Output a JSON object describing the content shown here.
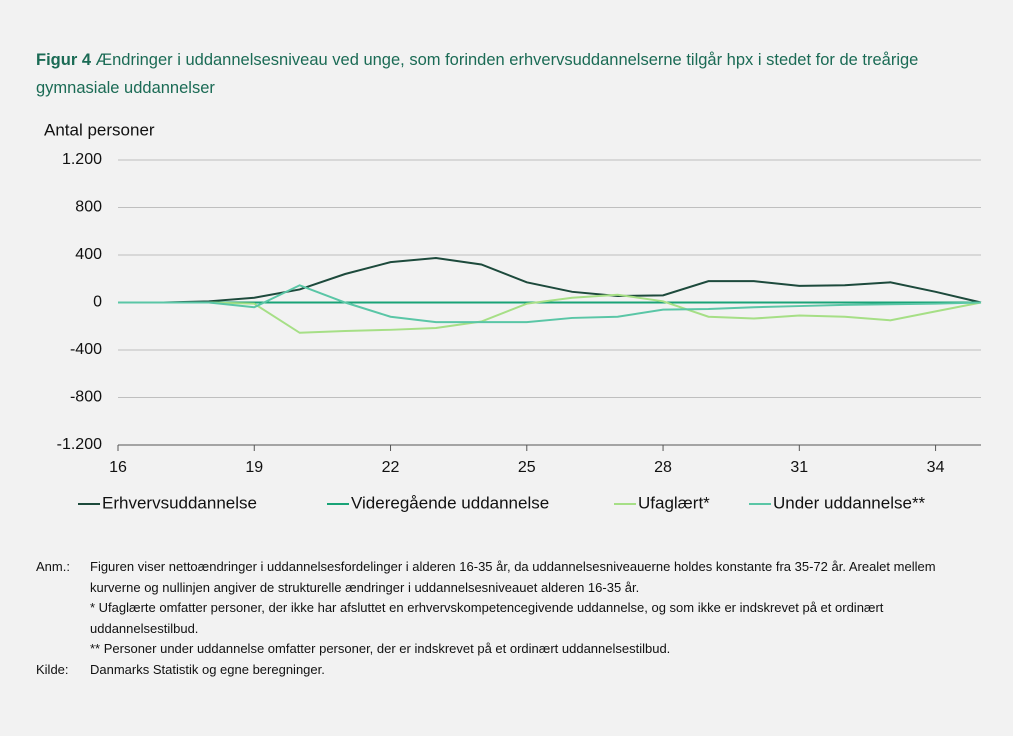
{
  "chart_data": {
    "type": "line",
    "figure_label": "Figur 4",
    "title": "Ændringer i uddannelsesniveau ved unge, som forinden erhvervsuddannelserne tilgår hpx i stedet for de treårige gymnasiale uddannelser",
    "y_label": "Antal personer",
    "x": [
      16,
      17,
      18,
      19,
      20,
      21,
      22,
      23,
      24,
      25,
      26,
      27,
      28,
      29,
      30,
      31,
      32,
      33,
      34,
      35
    ],
    "xlim": [
      16,
      35
    ],
    "xticks": [
      16,
      19,
      22,
      25,
      28,
      31,
      34
    ],
    "ylim": [
      -1200,
      1200
    ],
    "yticks": [
      {
        "value": -1200,
        "label": "-1.200"
      },
      -800,
      -400,
      0,
      400,
      800,
      {
        "value": 1200,
        "label": "1.200"
      }
    ],
    "grid": true,
    "legend": "bottom",
    "series": [
      {
        "name": "Erhvervsuddannelse",
        "color": "#1d4a3c",
        "values": [
          0,
          0,
          10,
          40,
          110,
          240,
          340,
          375,
          320,
          170,
          90,
          55,
          60,
          180,
          180,
          140,
          145,
          170,
          90,
          0
        ]
      },
      {
        "name": "Videregående uddannelse",
        "color": "#19a377",
        "values": [
          0,
          0,
          0,
          0,
          0,
          0,
          0,
          0,
          0,
          0,
          0,
          0,
          0,
          0,
          0,
          0,
          0,
          0,
          0,
          0
        ]
      },
      {
        "name": "Ufaglært*",
        "color": "#a6df86",
        "values": [
          0,
          0,
          0,
          -10,
          -255,
          -240,
          -230,
          -215,
          -160,
          -10,
          40,
          65,
          10,
          -120,
          -135,
          -110,
          -120,
          -150,
          -75,
          0
        ]
      },
      {
        "name": "Under uddannelse**",
        "color": "#5ac6a6",
        "values": [
          0,
          0,
          0,
          -40,
          145,
          0,
          -120,
          -165,
          -165,
          -165,
          -130,
          -120,
          -60,
          -55,
          -40,
          -30,
          -20,
          -15,
          -10,
          0
        ]
      }
    ]
  },
  "notes": {
    "label": "Anm.:",
    "paragraphs": [
      "Figuren viser nettoændringer i uddannelsesfordelinger i alderen 16-35 år, da uddannelsesniveauerne holdes konstante fra 35-72 år. Arealet mellem kurverne og nullinjen angiver de strukturelle ændringer i uddannelsesniveauet alderen 16-35 år.",
      "* Ufaglærte omfatter personer, der ikke har afsluttet en erhvervskompetencegivende uddannelse, og som ikke er indskrevet på et ordinært uddannelsestilbud.",
      "** Personer under uddannelse omfatter personer, der er indskrevet på et ordinært uddannelsestilbud."
    ],
    "source_label": "Kilde:",
    "source": "Danmarks Statistik og egne beregninger."
  }
}
